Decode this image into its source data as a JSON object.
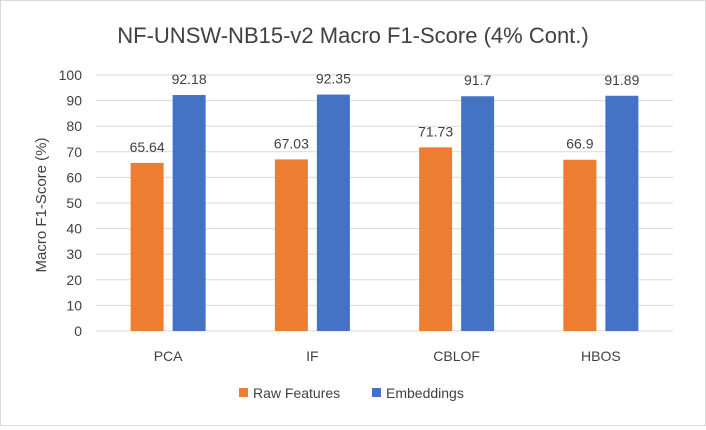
{
  "chart_data": {
    "type": "bar",
    "title": "NF-UNSW-NB15-v2 Macro F1-Score (4% Cont.)",
    "xlabel": "",
    "ylabel": "Macro F1-Score (%)",
    "ylim": [
      0,
      100
    ],
    "yticks": [
      0,
      10,
      20,
      30,
      40,
      50,
      60,
      70,
      80,
      90,
      100
    ],
    "categories": [
      "PCA",
      "IF",
      "CBLOF",
      "HBOS"
    ],
    "series": [
      {
        "name": "Raw Features",
        "color": "#ED7D31",
        "values": [
          65.64,
          67.03,
          71.73,
          66.9
        ],
        "labels": [
          "65.64",
          "67.03",
          "71.73",
          "66.9"
        ]
      },
      {
        "name": "Embeddings",
        "color": "#4472C4",
        "values": [
          92.18,
          92.35,
          91.7,
          91.89
        ],
        "labels": [
          "92.18",
          "92.35",
          "91.7",
          "91.89"
        ]
      }
    ],
    "grid": true,
    "legend": "bottom"
  }
}
